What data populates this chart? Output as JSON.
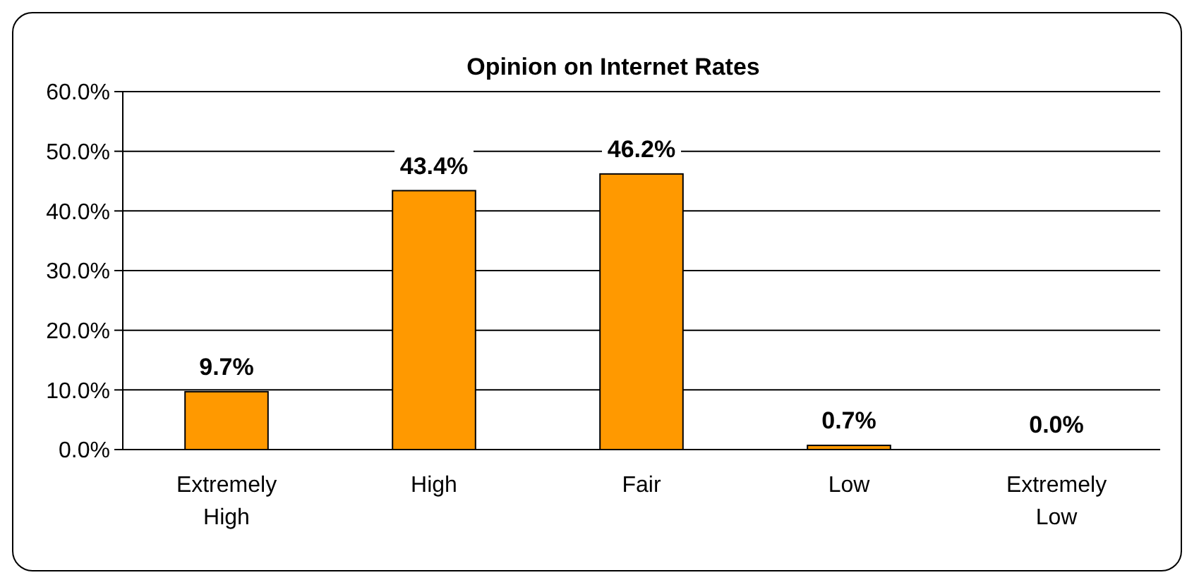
{
  "chart_data": {
    "type": "bar",
    "title": "Opinion on Internet Rates",
    "categories": [
      "Extremely High",
      "High",
      "Fair",
      "Low",
      "Extremely Low"
    ],
    "values": [
      9.7,
      43.4,
      46.2,
      0.7,
      0.0
    ],
    "value_labels": [
      "9.7%",
      "43.4%",
      "46.2%",
      "0.7%",
      "0.0%"
    ],
    "color": "#ff9900",
    "ylim": [
      0,
      60
    ],
    "yticks": [
      {
        "value": 0,
        "label": "0.0%"
      },
      {
        "value": 10,
        "label": "10.0%"
      },
      {
        "value": 20,
        "label": "20.0%"
      },
      {
        "value": 30,
        "label": "30.0%"
      },
      {
        "value": 40,
        "label": "40.0%"
      },
      {
        "value": 50,
        "label": "50.0%"
      },
      {
        "value": 60,
        "label": "60.0%"
      }
    ],
    "grid": "y"
  }
}
